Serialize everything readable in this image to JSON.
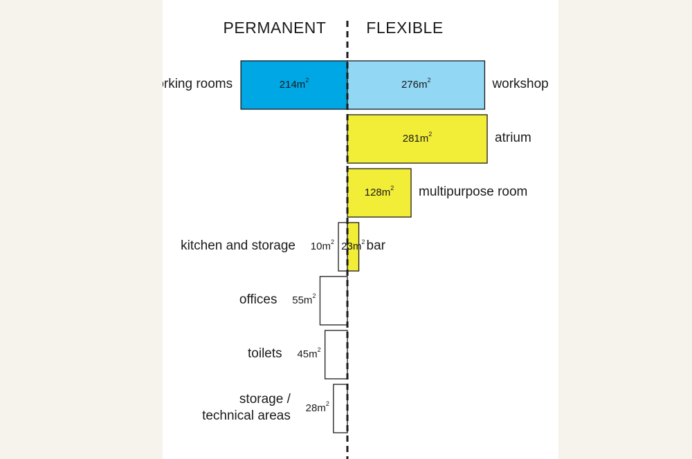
{
  "chart_data": {
    "type": "bar",
    "orientation": "diverging-horizontal",
    "unit": "m²",
    "headers": {
      "left": "PERMANENT",
      "right": "FLEXIBLE"
    },
    "rows": [
      {
        "permanent": {
          "value": 214,
          "label": "working rooms",
          "color": "#00a7e5"
        },
        "flexible": {
          "value": 276,
          "label": "workshop",
          "color": "#92d7f4"
        }
      },
      {
        "flexible": {
          "value": 281,
          "label": "atrium",
          "color": "#f2ed37"
        }
      },
      {
        "flexible": {
          "value": 128,
          "label": "multipurpose room",
          "color": "#f2ed37"
        }
      },
      {
        "permanent": {
          "value": 10,
          "label": "kitchen and storage",
          "color": "#ffffff"
        },
        "flexible": {
          "value": 23,
          "label": "bar",
          "color": "#f2ed37"
        }
      },
      {
        "permanent": {
          "value": 55,
          "label": "offices",
          "color": "#ffffff"
        }
      },
      {
        "permanent": {
          "value": 45,
          "label": "toilets",
          "color": "#ffffff"
        }
      },
      {
        "permanent": {
          "value": 28,
          "label": [
            "storage /",
            "technical areas"
          ],
          "color": "#ffffff"
        }
      }
    ]
  }
}
